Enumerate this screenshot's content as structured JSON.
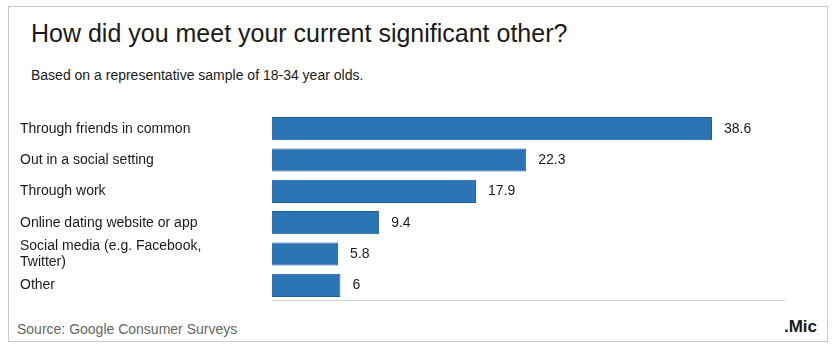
{
  "chart_data": {
    "type": "bar",
    "orientation": "horizontal",
    "title": "How did you meet your current significant other?",
    "subtitle": "Based on a representative sample of 18-34 year olds.",
    "categories": [
      "Through friends in common",
      "Out in a social setting",
      "Through work",
      "Online dating website or app",
      "Social media (e.g. Facebook, Twitter)",
      "Other"
    ],
    "values": [
      38.6,
      22.3,
      17.9,
      9.4,
      5.8,
      6
    ],
    "color": "#2a74b5",
    "xlim": [
      0,
      45
    ],
    "grid": false,
    "data_labels": true,
    "tick_labels": "y",
    "annotations": [
      "Source: Google Consumer Surveys",
      ".Mic"
    ]
  }
}
